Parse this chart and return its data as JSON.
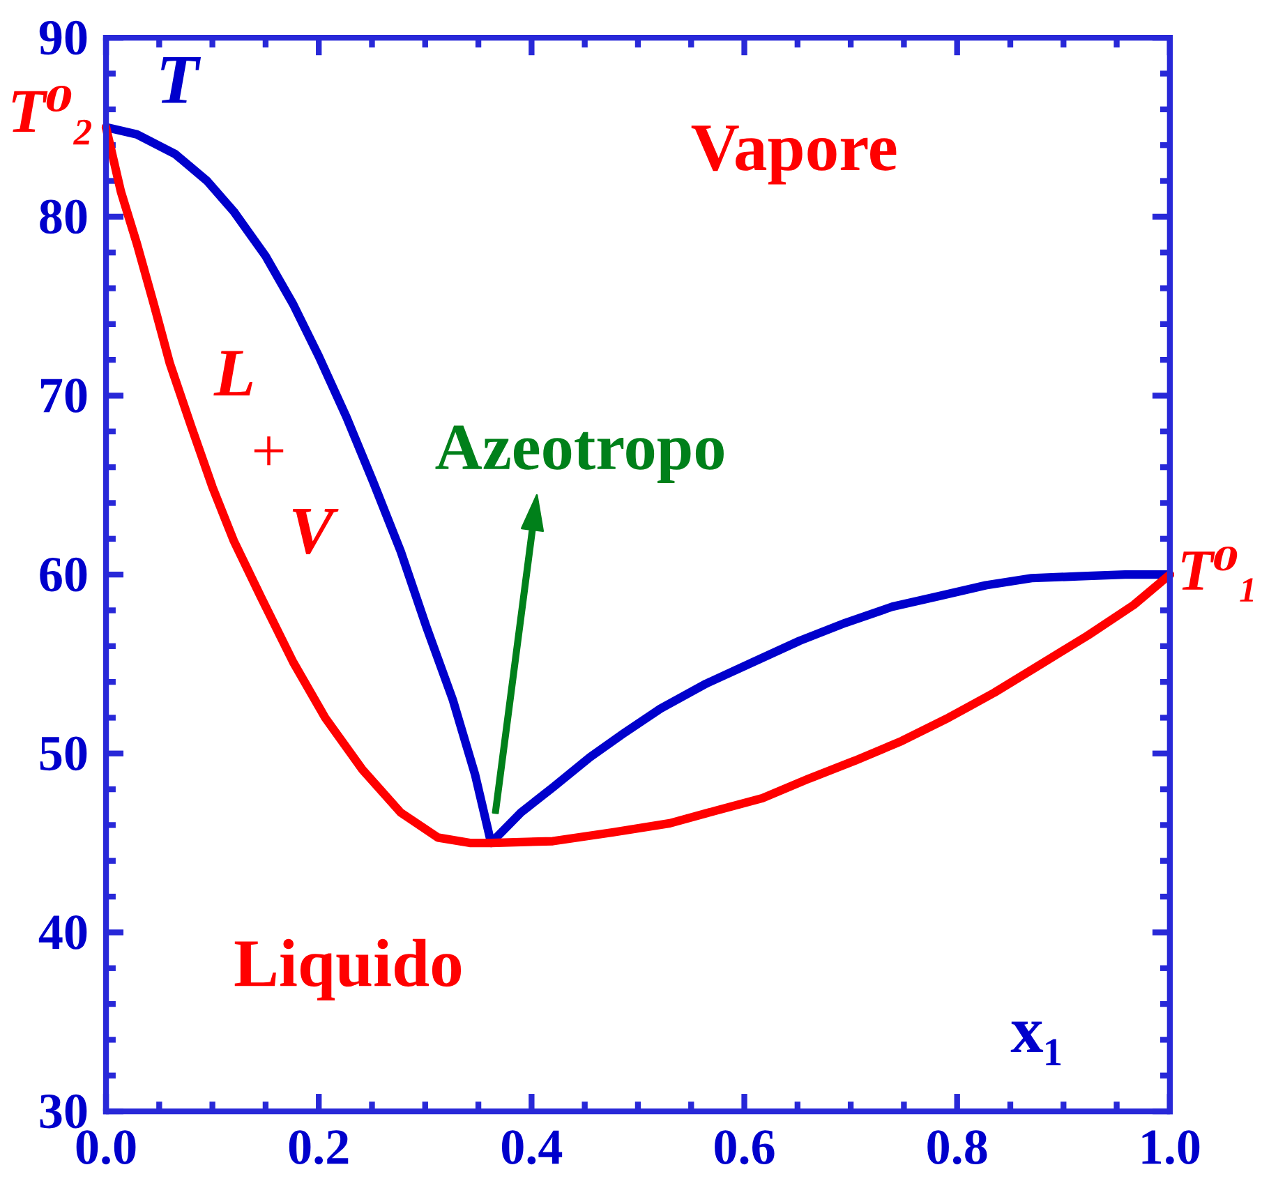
{
  "chart_data": {
    "type": "line",
    "xlabel": "x₁",
    "ylabel": "T",
    "xlim": [
      0,
      1
    ],
    "ylim": [
      30,
      90
    ],
    "xticks": [
      {
        "value": 0,
        "label": "0.0"
      },
      0.2,
      0.4,
      0.6,
      0.8,
      {
        "value": 1,
        "label": "1.0"
      }
    ],
    "yticks": [
      30,
      40,
      50,
      60,
      70,
      80,
      90
    ],
    "series": [
      {
        "color": "#0000cc",
        "x": [
          0,
          0.029,
          0.065,
          0.095,
          0.12,
          0.15,
          0.176,
          0.2,
          0.226,
          0.251,
          0.277,
          0.301,
          0.326,
          0.347,
          0.362,
          0.39,
          0.42,
          0.455,
          0.486,
          0.521,
          0.564,
          0.608,
          0.652,
          0.695,
          0.739,
          0.783,
          0.827,
          0.87,
          0.914,
          0.958,
          1
        ],
        "values": [
          85,
          84.6,
          83.5,
          82.0,
          80.3,
          77.8,
          75.1,
          72.2,
          68.8,
          65.2,
          61.3,
          57.1,
          53.0,
          48.8,
          45.0,
          46.7,
          48.1,
          49.8,
          51.1,
          52.5,
          53.9,
          55.1,
          56.3,
          57.3,
          58.2,
          58.8,
          59.4,
          59.8,
          59.9,
          60.0,
          60
        ]
      },
      {
        "color": "#ff0000",
        "x": [
          0,
          0.014,
          0.029,
          0.045,
          0.06,
          0.08,
          0.1,
          0.12,
          0.146,
          0.176,
          0.206,
          0.241,
          0.277,
          0.312,
          0.342,
          0.362,
          0.42,
          0.477,
          0.53,
          0.573,
          0.617,
          0.661,
          0.704,
          0.748,
          0.792,
          0.835,
          0.879,
          0.923,
          0.966,
          1
        ],
        "values": [
          85,
          81.4,
          78.5,
          75.1,
          71.8,
          68.3,
          64.9,
          61.9,
          58.7,
          55.1,
          52.0,
          49.1,
          46.7,
          45.3,
          45.0,
          45.0,
          45.1,
          45.6,
          46.1,
          46.8,
          47.5,
          48.6,
          49.6,
          50.7,
          52.0,
          53.4,
          55.0,
          56.6,
          58.3,
          60
        ]
      }
    ],
    "annotations": [
      {
        "text": "T⁰₂",
        "x": 0,
        "y": 85
      },
      {
        "text": "T⁰₁",
        "x": 1,
        "y": 60
      },
      "Azeotropo",
      "Vapore",
      "Liquido",
      "L",
      "+",
      "V"
    ],
    "marker": "none",
    "line_style": "solid"
  }
}
